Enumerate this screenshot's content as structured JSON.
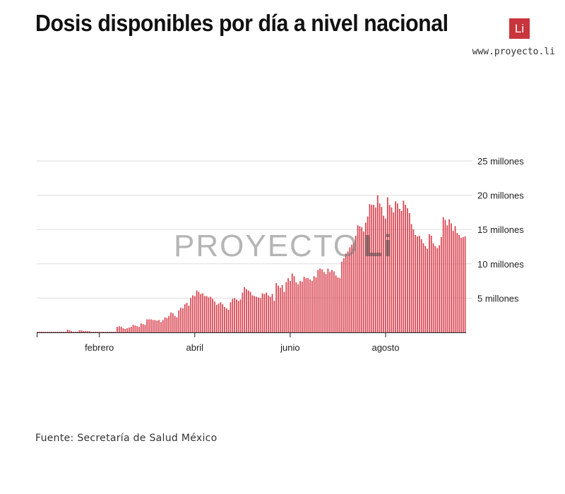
{
  "header": {
    "title": "Dosis disponibles por día a nivel nacional",
    "logo_text": "Li",
    "website": "www.proyecto.li"
  },
  "watermark": {
    "text": "PROYECTO",
    "mark": "Li"
  },
  "footer": {
    "source": "Fuente: Secretaría de Salud México"
  },
  "colors": {
    "bar": "#d9434f",
    "logo_bg": "#c8353c",
    "grid": "#dddddd",
    "axis": "#222222"
  },
  "chart_data": {
    "type": "bar",
    "title": "Dosis disponibles por día a nivel nacional",
    "y_unit_millions": true,
    "ylim": [
      0,
      25
    ],
    "y_ticks": [
      {
        "value": 5,
        "label": "5 millones"
      },
      {
        "value": 10,
        "label": "10 millones"
      },
      {
        "value": 15,
        "label": "15 millones"
      },
      {
        "value": 20,
        "label": "20 millones"
      },
      {
        "value": 25,
        "label": "25 millones"
      }
    ],
    "x_ticks": [
      {
        "index": 31,
        "label": "febrero"
      },
      {
        "index": 79,
        "label": "abril"
      },
      {
        "index": 127,
        "label": "junio"
      },
      {
        "index": 175,
        "label": "agosto"
      }
    ],
    "grid": true,
    "values": [
      0.1,
      0.1,
      0.1,
      0.1,
      0.1,
      0.1,
      0.1,
      0.1,
      0.1,
      0.1,
      0.1,
      0.1,
      0.1,
      0.1,
      0.1,
      0.4,
      0.3,
      0.2,
      0.1,
      0.1,
      0.1,
      0.3,
      0.3,
      0.2,
      0.2,
      0.2,
      0.2,
      0.1,
      0.1,
      0.1,
      0.1,
      0.1,
      0.1,
      0.1,
      0.1,
      0.1,
      0.1,
      0.1,
      0.1,
      0.1,
      0.8,
      0.9,
      0.8,
      0.6,
      0.5,
      0.6,
      0.7,
      0.8,
      1.1,
      1.0,
      0.9,
      0.8,
      1.3,
      1.2,
      1.1,
      1.9,
      1.9,
      1.9,
      1.8,
      1.8,
      1.7,
      1.8,
      1.5,
      1.8,
      2.2,
      2.1,
      2.4,
      2.9,
      2.8,
      2.4,
      2.2,
      3.2,
      3.6,
      3.5,
      4.1,
      4.3,
      3.9,
      5.0,
      5.4,
      5.3,
      6.1,
      5.9,
      5.6,
      5.7,
      5.3,
      5.3,
      5.1,
      5.2,
      4.9,
      4.5,
      4.0,
      4.2,
      4.4,
      4.1,
      3.7,
      3.5,
      3.3,
      4.4,
      4.9,
      5.0,
      4.8,
      4.6,
      4.8,
      5.8,
      6.6,
      6.3,
      6.1,
      5.9,
      5.4,
      5.3,
      5.2,
      5.1,
      5.0,
      5.7,
      5.6,
      5.8,
      5.4,
      5.2,
      5.6,
      4.6,
      7.2,
      6.8,
      6.5,
      6.9,
      5.9,
      7.3,
      7.9,
      7.5,
      8.6,
      8.2,
      7.3,
      7.0,
      7.5,
      7.4,
      8.1,
      7.9,
      7.9,
      7.7,
      7.5,
      8.2,
      8.0,
      9.1,
      9.3,
      9.2,
      8.8,
      8.5,
      9.3,
      8.8,
      9.1,
      8.9,
      8.3,
      8.0,
      7.9,
      10.3,
      10.8,
      11.5,
      11.8,
      12.4,
      12.8,
      13.1,
      14.1,
      15.6,
      15.5,
      15.3,
      14.7,
      16.0,
      16.9,
      18.7,
      18.6,
      18.6,
      18.2,
      20.0,
      18.8,
      18.3,
      17.0,
      16.6,
      19.7,
      18.6,
      18.2,
      17.5,
      19.1,
      18.8,
      18.0,
      17.7,
      19.2,
      18.6,
      18.1,
      17.4,
      15.8,
      15.0,
      14.2,
      14.0,
      14.1,
      13.6,
      13.0,
      12.6,
      12.2,
      14.3,
      14.1,
      13.0,
      12.6,
      12.3,
      12.7,
      13.9,
      16.8,
      16.4,
      15.6,
      16.5,
      15.9,
      14.8,
      15.5,
      14.5,
      14.2,
      13.8,
      13.9,
      14.0
    ]
  }
}
